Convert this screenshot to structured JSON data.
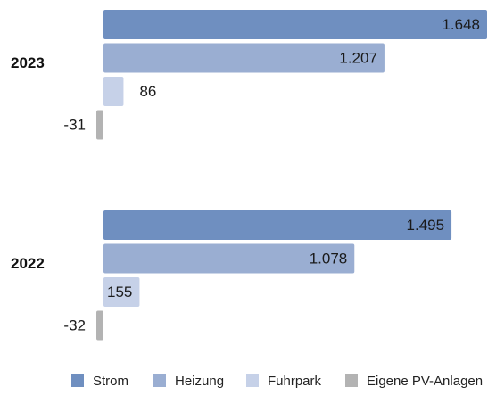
{
  "chart_data": {
    "type": "bar",
    "orientation": "horizontal",
    "categories": [
      "2023",
      "2022"
    ],
    "series": [
      {
        "name": "Strom",
        "color": "#6f8fc0",
        "values": [
          1648,
          1495
        ]
      },
      {
        "name": "Heizung",
        "color": "#9aaed2",
        "values": [
          1207,
          1078
        ]
      },
      {
        "name": "Fuhrpark",
        "color": "#c6d1e8",
        "values": [
          86,
          155
        ]
      },
      {
        "name": "Eigene PV-Anlagen",
        "color": "#b3b3b3",
        "values": [
          -31,
          -32
        ]
      }
    ],
    "value_labels": [
      [
        "1.648",
        "1.207",
        "86",
        "-31"
      ],
      [
        "1.495",
        "1.078",
        "155",
        "-32"
      ]
    ],
    "legend": {
      "position": "bottom"
    },
    "title": "",
    "xlabel": "",
    "ylabel": "",
    "xlim": [
      -40,
      1700
    ],
    "grid": false
  }
}
